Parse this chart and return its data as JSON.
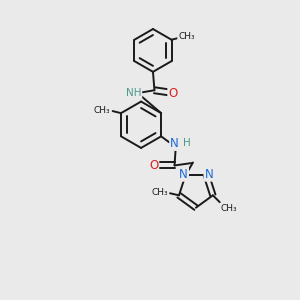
{
  "bg_color": "#eaeaea",
  "bond_color": "#1a1a1a",
  "bond_width": 1.4,
  "atom_colors": {
    "C": "#1a1a1a",
    "N": "#1a6bdd",
    "O": "#dd2020",
    "NH": "#4a9a8a",
    "H": "#4a9a8a"
  },
  "font_size": 7.5,
  "fig_size": [
    3.0,
    3.0
  ],
  "dpi": 100,
  "xlim": [
    0,
    10
  ],
  "ylim": [
    0,
    10
  ]
}
